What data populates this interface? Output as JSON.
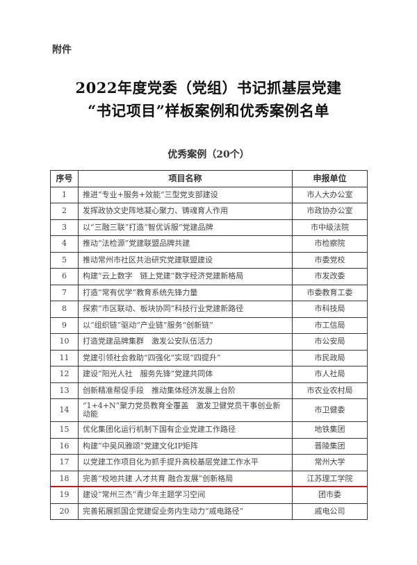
{
  "attachment_label": "附件",
  "title_line1": "2022年度党委（党组）书记抓基层党建",
  "title_line2": "“书记项目”样板案例和优秀案例名单",
  "section_title": "优秀案例（20个）",
  "table": {
    "headers": [
      "序号",
      "项目名称",
      "申报单位"
    ],
    "rows": [
      {
        "no": "1",
        "name": "推进“专业+服务+效能”三型党支部建设",
        "unit": "市人大办公室"
      },
      {
        "no": "2",
        "name": "发挥政协文史阵地凝心聚力、铸魂育人作用",
        "unit": "市政协办公室"
      },
      {
        "no": "3",
        "name": "以“三融三联”打造“智优诉服”党建品牌",
        "unit": "市中级法院"
      },
      {
        "no": "4",
        "name": "推动“法检源”党建联盟品牌共建",
        "unit": "市检察院"
      },
      {
        "no": "5",
        "name": "推动常州市社区共治研究党建联盟建设",
        "unit": "市委党校"
      },
      {
        "no": "6",
        "name": "构建“云上数字　链上党建”数字经济党建新格局",
        "unit": "市发改委"
      },
      {
        "no": "7",
        "name": "打造“常有优学”教育系统先锋力量",
        "unit": "市委教育工委"
      },
      {
        "no": "8",
        "name": "探索“市区联动、板块协同”科技行业党建新路径",
        "unit": "市科技局"
      },
      {
        "no": "9",
        "name": "以“组织链”驱动“产业链”服务“创新链”",
        "unit": "市工信局"
      },
      {
        "no": "10",
        "name": "打造党建品牌集群　激发公安队伍活力",
        "unit": "市公安局"
      },
      {
        "no": "11",
        "name": "党建引领社会救助“四强化”实现“四提升”",
        "unit": "市民政局"
      },
      {
        "no": "12",
        "name": "建设“阳光人社　服务先锋”党建共同体",
        "unit": "市人社局"
      },
      {
        "no": "13",
        "name": "创新精准帮促手段　推动集体经济发展上台阶",
        "unit": "市农业农村局"
      },
      {
        "no": "14",
        "name": "“1+4+N”聚力党员教育全覆盖　激发卫健党员干事创业新动能",
        "unit": "市卫健委"
      },
      {
        "no": "15",
        "name": "优化集团化运行机制下国有企业党建工作路径",
        "unit": "地铁集团"
      },
      {
        "no": "16",
        "name": "构建“中吴风雅颂”党建文化IP矩阵",
        "unit": "晋陵集团"
      },
      {
        "no": "17",
        "name": "以党建工作项目化为抓手提升高校基层党建工作水平",
        "unit": "常州大学"
      },
      {
        "no": "18",
        "name": "完善“校地共建 人才共育 融合发展”创新格局",
        "unit": "江苏理工学院"
      },
      {
        "no": "19",
        "name": "建设“常州三杰”青少年主题学习空间",
        "unit": "团市委"
      },
      {
        "no": "20",
        "name": "完善拓展抓国企党建促业务内生动力“戚电路径”",
        "unit": "戚电公司"
      }
    ]
  },
  "highlight_color": "#c8141e"
}
